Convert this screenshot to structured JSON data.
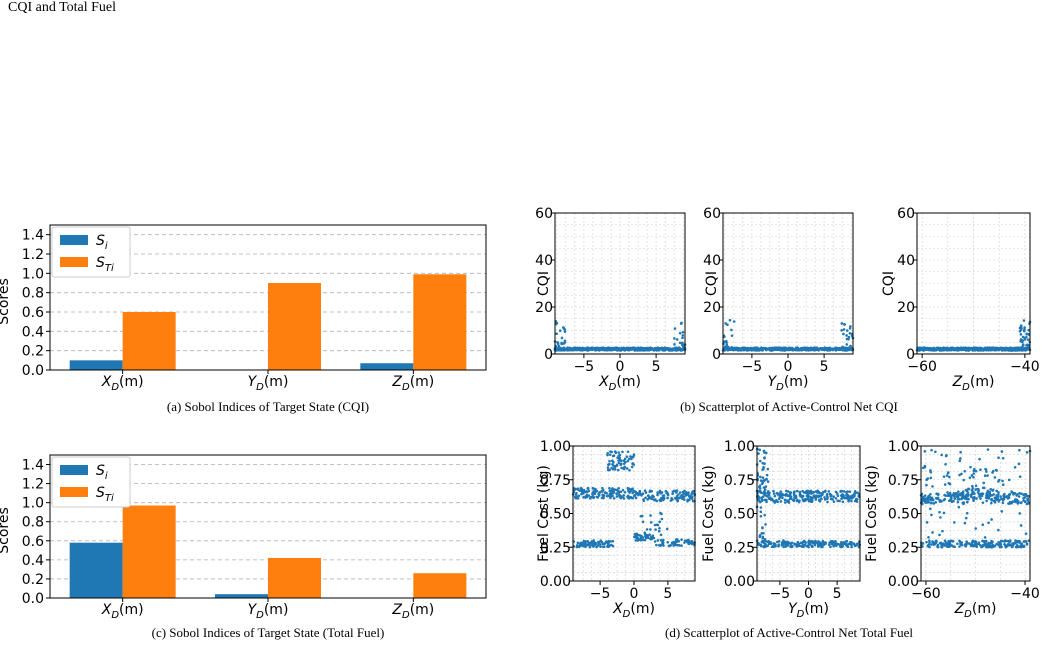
{
  "page": {
    "title": "CQI and Total Fuel"
  },
  "colors": {
    "si": "#1f77b4",
    "sti": "#ff7f0e",
    "scatter": "#1f77b4",
    "grid": "#b0b0b0"
  },
  "captions": {
    "a": "(a) Sobol Indices of Target State (CQI)",
    "b": "(b) Scatterplot of Active-Control Net CQI",
    "c": "(c) Sobol Indices of Target State (Total Fuel)",
    "d": "(d) Scatterplot of Active-Control Net Total Fuel"
  },
  "chart_data": [
    {
      "id": "a",
      "type": "bar",
      "ylabel": "Scores",
      "ylim": [
        0,
        1.5
      ],
      "yticks": [
        "0.0",
        "0.2",
        "0.4",
        "0.6",
        "0.8",
        "1.0",
        "1.2",
        "1.4"
      ],
      "categories": [
        "X_D(m)",
        "Y_D(m)",
        "Z_D(m)"
      ],
      "series": [
        {
          "name": "S_i",
          "values": [
            0.1,
            0.0,
            0.07
          ]
        },
        {
          "name": "S_Ti",
          "values": [
            0.6,
            0.9,
            0.99
          ]
        }
      ],
      "legend": "upper-left",
      "grid": "y"
    },
    {
      "id": "c",
      "type": "bar",
      "ylabel": "Scores",
      "ylim": [
        0,
        1.5
      ],
      "yticks": [
        "0.0",
        "0.2",
        "0.4",
        "0.6",
        "0.8",
        "1.0",
        "1.2",
        "1.4"
      ],
      "categories": [
        "X_D(m)",
        "Y_D(m)",
        "Z_D(m)"
      ],
      "series": [
        {
          "name": "S_i",
          "values": [
            0.58,
            0.04,
            0.0
          ]
        },
        {
          "name": "S_Ti",
          "values": [
            0.97,
            0.42,
            0.26
          ]
        }
      ],
      "legend": "upper-left",
      "grid": "y"
    },
    {
      "id": "b1",
      "type": "scatter",
      "xlabel": "X_D(m)",
      "ylabel": "CQI",
      "xlim": [
        -9,
        9
      ],
      "ylim": [
        0,
        60
      ],
      "xticks": [
        -5,
        0,
        5
      ],
      "yticks": [
        0,
        20,
        40,
        60
      ],
      "description_points": "dense band near 2, edge clusters up to 14"
    },
    {
      "id": "b2",
      "type": "scatter",
      "xlabel": "Y_D(m)",
      "ylabel": "CQI",
      "xlim": [
        -9,
        9
      ],
      "ylim": [
        0,
        60
      ],
      "xticks": [
        -5,
        0,
        5
      ],
      "yticks": [
        0,
        20,
        40,
        60
      ]
    },
    {
      "id": "b3",
      "type": "scatter",
      "xlabel": "Z_D(m)",
      "ylabel": "CQI",
      "xlim": [
        -61,
        -39
      ],
      "ylim": [
        0,
        60
      ],
      "xticks": [
        -60,
        -40
      ],
      "yticks": [
        0,
        20,
        40,
        60
      ]
    },
    {
      "id": "d1",
      "type": "scatter",
      "xlabel": "X_D(m)",
      "ylabel": "Fuel Cost (kg)",
      "xlim": [
        -9,
        9
      ],
      "ylim": [
        0,
        1
      ],
      "xticks": [
        -5,
        0,
        5
      ],
      "yticks": [
        "0.00",
        "0.25",
        "0.50",
        "0.75",
        "1.00"
      ]
    },
    {
      "id": "d2",
      "type": "scatter",
      "xlabel": "Y_D(m)",
      "ylabel": "Fuel Cost (kg)",
      "xlim": [
        -9,
        9
      ],
      "ylim": [
        0,
        1
      ],
      "xticks": [
        -5,
        0,
        5
      ],
      "yticks": [
        "0.00",
        "0.25",
        "0.50",
        "0.75",
        "1.00"
      ]
    },
    {
      "id": "d3",
      "type": "scatter",
      "xlabel": "Z_D(m)",
      "ylabel": "Fuel Cost (kg)",
      "xlim": [
        -61,
        -39
      ],
      "ylim": [
        0,
        1
      ],
      "xticks": [
        -60,
        -40
      ],
      "yticks": [
        "0.00",
        "0.25",
        "0.50",
        "0.75",
        "1.00"
      ]
    }
  ]
}
